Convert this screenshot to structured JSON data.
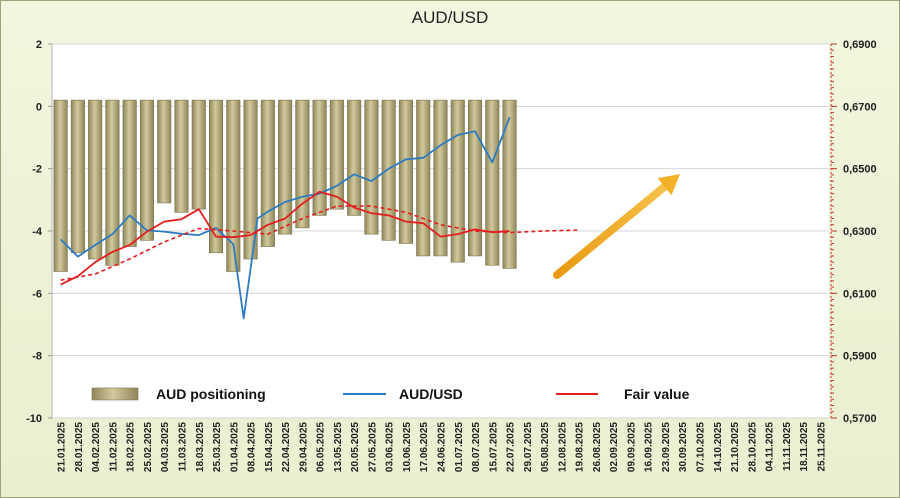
{
  "chart_data": {
    "type": "bar+line",
    "title": "AUD/USD",
    "x_tick_labels": [
      "21.01.2025",
      "28.01.2025",
      "04.02.2025",
      "11.02.2025",
      "18.02.2025",
      "25.02.2025",
      "04.03.2025",
      "11.03.2025",
      "18.03.2025",
      "25.03.2025",
      "01.04.2025",
      "08.04.2025",
      "15.04.2025",
      "22.04.2025",
      "29.04.2025",
      "06.05.2025",
      "13.05.2025",
      "20.05.2025",
      "27.05.2025",
      "03.06.2025",
      "10.06.2025",
      "17.06.2025",
      "24.06.2025",
      "01.07.2025",
      "08.07.2025",
      "15.07.2025",
      "22.07.2025",
      "29.07.2025",
      "05.08.2025",
      "12.08.2025",
      "19.08.2025",
      "26.08.2025",
      "02.09.2025",
      "09.09.2025",
      "16.09.2025",
      "23.09.2025",
      "30.09.2025",
      "07.10.2025",
      "14.10.2025",
      "21.10.2025",
      "28.10.2025",
      "04.11.2025",
      "11.11.2025",
      "18.11.2025",
      "25.11.2025"
    ],
    "y_left": {
      "ylim": [
        -10,
        2
      ],
      "ticks": [
        "2",
        "0",
        "-2",
        "-4",
        "-6",
        "-8",
        "-10"
      ]
    },
    "y_right": {
      "ylim": [
        0.57,
        0.69
      ],
      "ticks": [
        "0,6900",
        "0,6700",
        "0,6500",
        "0,6300",
        "0,6100",
        "0,5900",
        "0,5700"
      ]
    },
    "series": [
      {
        "name": "AUD positioning",
        "axis": "left",
        "kind": "bar",
        "color": "#b0a677",
        "values": [
          -5.3,
          -4.7,
          -4.9,
          -5.1,
          -4.5,
          -4.3,
          -3.1,
          -3.4,
          -3.3,
          -4.7,
          -5.3,
          -4.9,
          -4.5,
          -4.1,
          -3.9,
          -3.5,
          -3.3,
          -3.5,
          -4.1,
          -4.3,
          -4.4,
          -4.8,
          -4.8,
          -5.0,
          -4.8,
          -5.1,
          -5.2
        ]
      },
      {
        "name": "AUD/USD",
        "axis": "right",
        "kind": "line",
        "color": "#2d7bc0",
        "values": [
          [
            0,
            0.6273
          ],
          [
            1,
            0.6218
          ],
          [
            2,
            0.6255
          ],
          [
            3,
            0.629
          ],
          [
            4,
            0.635
          ],
          [
            5,
            0.6302
          ],
          [
            6,
            0.6298
          ],
          [
            7,
            0.6291
          ],
          [
            8,
            0.6287
          ],
          [
            9,
            0.631
          ],
          [
            10,
            0.6258
          ],
          [
            10.6,
            0.602
          ],
          [
            11.4,
            0.634
          ],
          [
            12,
            0.6362
          ],
          [
            13,
            0.6393
          ],
          [
            14,
            0.641
          ],
          [
            15,
            0.642
          ],
          [
            16,
            0.6445
          ],
          [
            17,
            0.6482
          ],
          [
            18,
            0.646
          ],
          [
            19,
            0.65
          ],
          [
            20,
            0.653
          ],
          [
            21,
            0.6535
          ],
          [
            22,
            0.6575
          ],
          [
            23,
            0.6608
          ],
          [
            24,
            0.662
          ],
          [
            25,
            0.652
          ],
          [
            26,
            0.6665
          ]
        ]
      },
      {
        "name": "Fair value",
        "axis": "right",
        "kind": "line",
        "color": "#e41e1e",
        "values": [
          [
            0,
            0.6128
          ],
          [
            1,
            0.6155
          ],
          [
            2,
            0.62
          ],
          [
            3,
            0.6233
          ],
          [
            4,
            0.6255
          ],
          [
            5,
            0.6298
          ],
          [
            6,
            0.633
          ],
          [
            7,
            0.6338
          ],
          [
            8,
            0.637
          ],
          [
            9,
            0.6282
          ],
          [
            10,
            0.628
          ],
          [
            11,
            0.6287
          ],
          [
            12,
            0.632
          ],
          [
            13,
            0.634
          ],
          [
            14,
            0.6388
          ],
          [
            15,
            0.6426
          ],
          [
            16,
            0.641
          ],
          [
            17,
            0.6375
          ],
          [
            18,
            0.6357
          ],
          [
            19,
            0.635
          ],
          [
            20,
            0.633
          ],
          [
            21,
            0.6325
          ],
          [
            22,
            0.6282
          ],
          [
            23,
            0.629
          ],
          [
            24,
            0.6305
          ],
          [
            25,
            0.6296
          ],
          [
            26,
            0.63
          ]
        ]
      },
      {
        "name": "",
        "axis": "right",
        "kind": "dashed-line",
        "color": "#e41e1e",
        "values": [
          [
            0,
            0.6142
          ],
          [
            2,
            0.6162
          ],
          [
            4,
            0.621
          ],
          [
            6,
            0.6265
          ],
          [
            8,
            0.6308
          ],
          [
            10,
            0.63
          ],
          [
            12,
            0.629
          ],
          [
            14,
            0.634
          ],
          [
            16,
            0.638
          ],
          [
            18,
            0.638
          ],
          [
            20,
            0.636
          ],
          [
            22,
            0.632
          ],
          [
            24,
            0.63
          ],
          [
            26,
            0.6295
          ],
          [
            28,
            0.63
          ],
          [
            30,
            0.6303
          ]
        ]
      }
    ],
    "annotation": {
      "type": "arrow",
      "direction": "up-right",
      "color": "#f2a81d"
    },
    "legend": {
      "placement": "bottom",
      "items": [
        "AUD positioning",
        "AUD/USD",
        "Fair value"
      ]
    },
    "grid": true
  }
}
